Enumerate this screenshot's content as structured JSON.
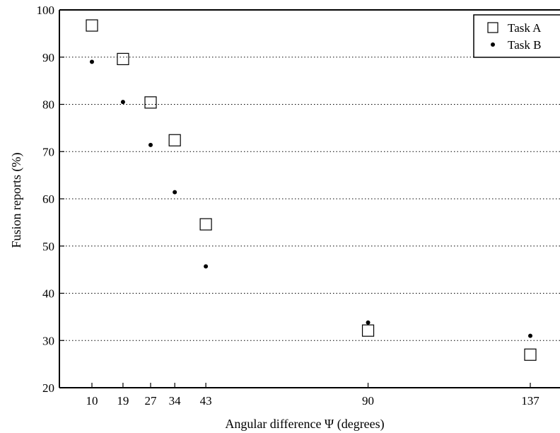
{
  "chart_data": {
    "type": "scatter",
    "title": "",
    "xlabel": "Angular difference Ψ (degrees)",
    "ylabel": "Fusion reports (%)",
    "x": [
      10,
      19,
      27,
      34,
      43,
      90,
      137
    ],
    "x_tick_labels": [
      "10",
      "19",
      "27",
      "34",
      "43",
      "90",
      "137"
    ],
    "ylim": [
      20,
      100
    ],
    "y_ticks": [
      20,
      30,
      40,
      50,
      60,
      70,
      80,
      90,
      100
    ],
    "grid": "horizontal dotted",
    "legend_position": "top-right",
    "series": [
      {
        "name": "Task A",
        "marker": "open-square",
        "color": "#000000",
        "values": [
          96.7,
          89.6,
          80.4,
          72.4,
          54.6,
          32.1,
          27.0
        ]
      },
      {
        "name": "Task B",
        "marker": "filled-dot",
        "color": "#000000",
        "values": [
          89.0,
          80.5,
          71.4,
          61.4,
          45.7,
          33.8,
          31.0
        ]
      }
    ]
  }
}
